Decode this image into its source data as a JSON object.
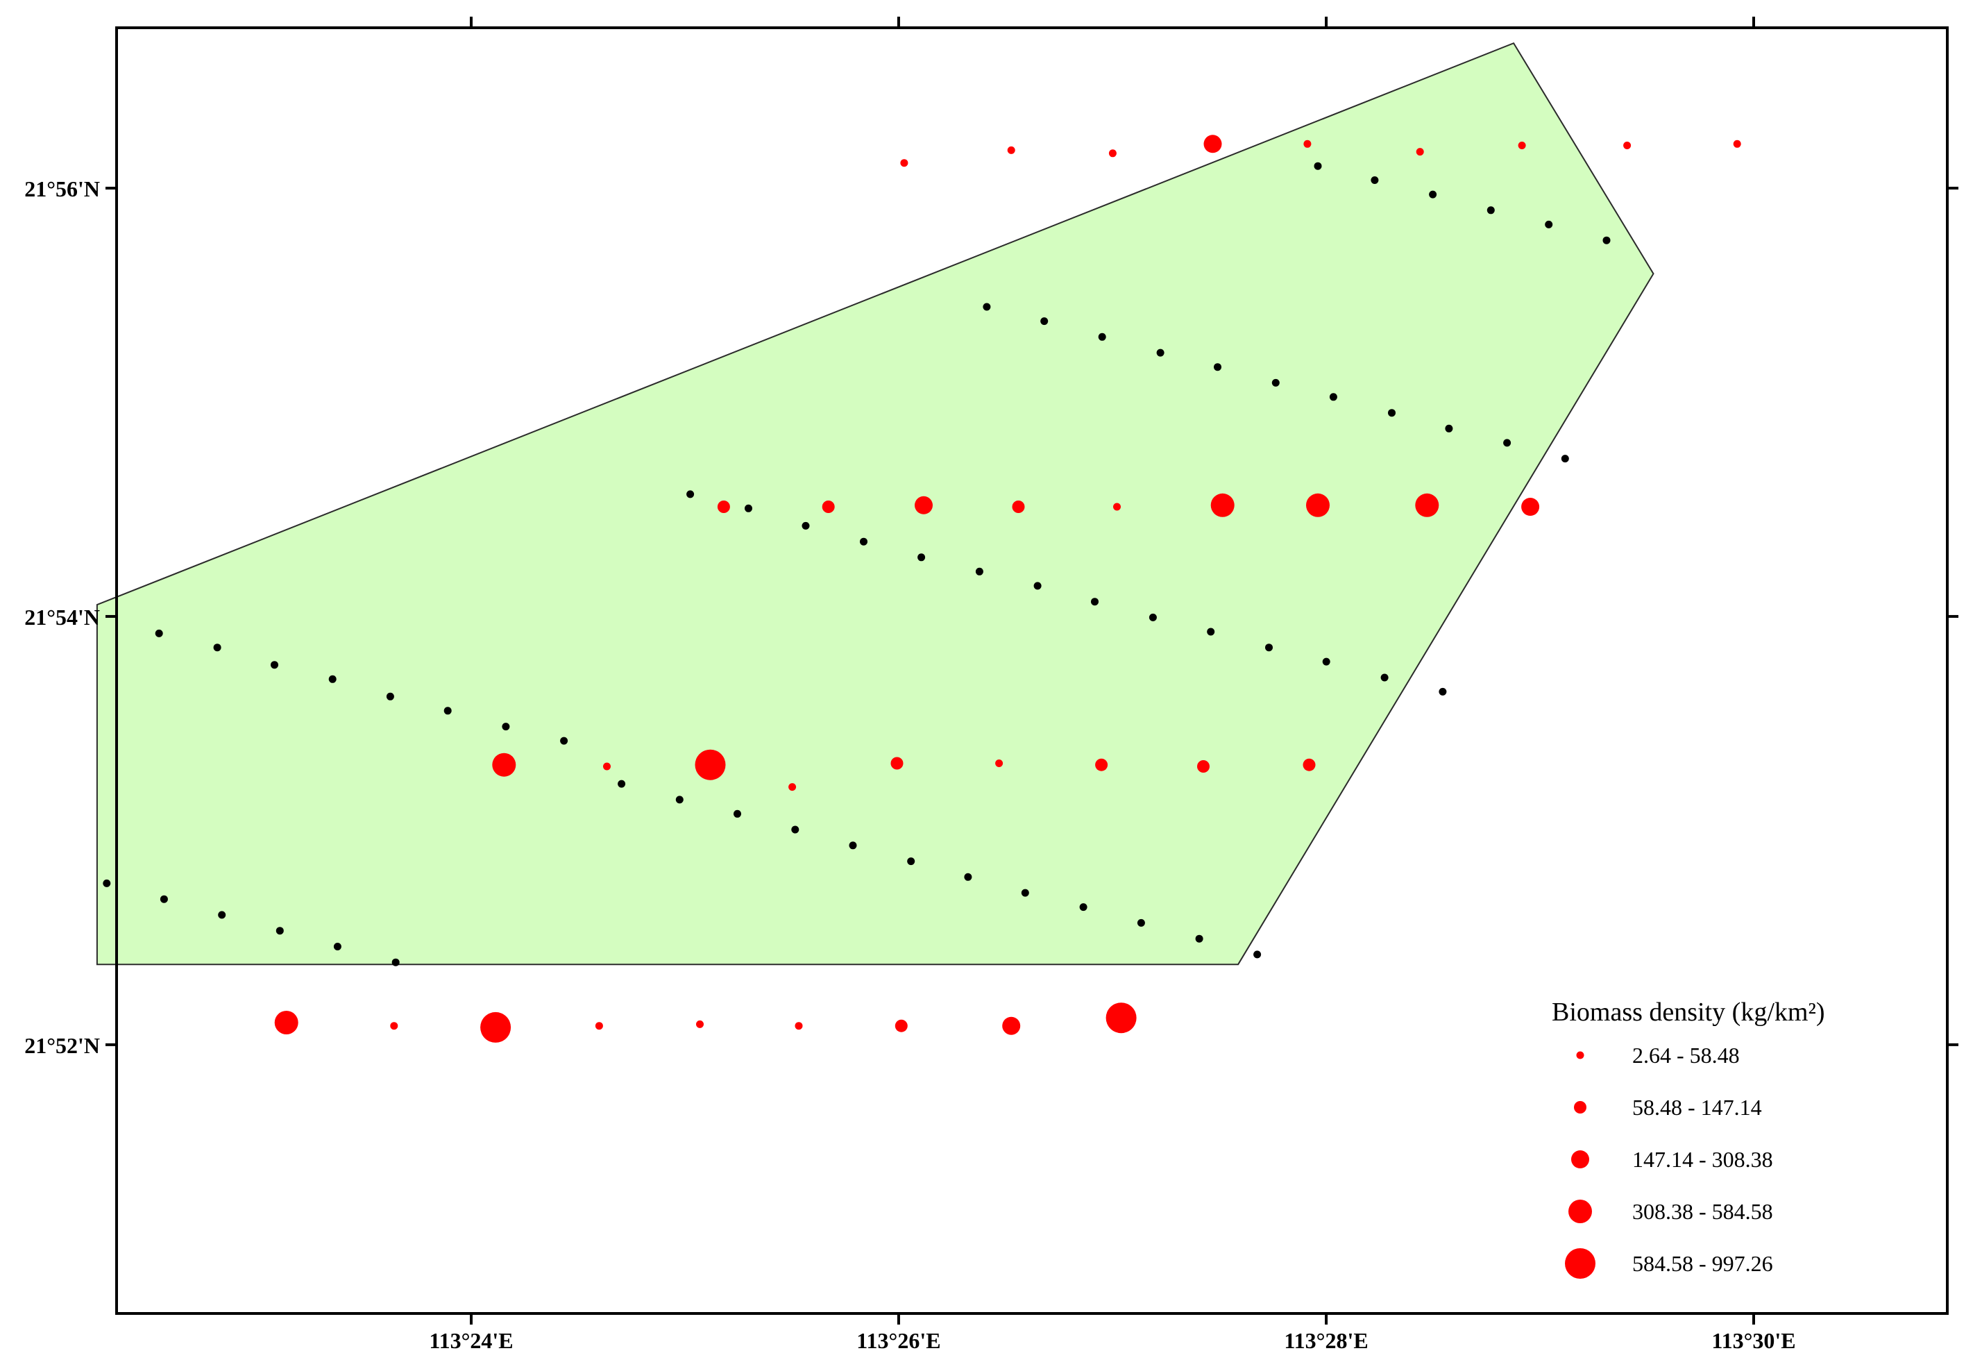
{
  "colors": {
    "study_area_fill": "#d4fdc0",
    "study_area_stroke": "#2b2b2b",
    "biomass_point": "#ff0000",
    "grid_point": "#000000",
    "frame": "#000000",
    "background": "#ffffff"
  },
  "map": {
    "lon_ticks": [
      {
        "lon": 113.4,
        "label": "113°24'E"
      },
      {
        "lon": 113.43333,
        "label": "113°26'E"
      },
      {
        "lon": 113.46667,
        "label": "113°28'E"
      },
      {
        "lon": 113.5,
        "label": "113°30'E"
      }
    ],
    "lat_ticks": [
      {
        "lat": 21.93333,
        "label": "21°56'N"
      },
      {
        "lat": 21.9,
        "label": "21°54'N"
      },
      {
        "lat": 21.86667,
        "label": "21°52'N"
      }
    ],
    "study_area_polygon": [
      [
        113.37083,
        21.90091
      ],
      [
        113.48128,
        21.94461
      ],
      [
        113.49218,
        21.92667
      ],
      [
        113.4598,
        21.87292
      ],
      [
        113.37083,
        21.87292
      ]
    ],
    "legend": {
      "title": "Biomass density (kg/km²)",
      "classes": [
        {
          "label": "2.64 - 58.48",
          "class": 1
        },
        {
          "label": "58.48 - 147.14",
          "class": 2
        },
        {
          "label": "147.14 - 308.38",
          "class": 3
        },
        {
          "label": "308.38 - 584.58",
          "class": 4
        },
        {
          "label": "584.58 - 997.26",
          "class": 5
        }
      ]
    },
    "biomass_points": [
      [
        113.43376,
        21.93529,
        1
      ],
      [
        113.44211,
        21.93628,
        1
      ],
      [
        113.45002,
        21.93604,
        1
      ],
      [
        113.45782,
        21.93677,
        3
      ],
      [
        113.4652,
        21.93677,
        1
      ],
      [
        113.47398,
        21.93616,
        1
      ],
      [
        113.48193,
        21.93665,
        1
      ],
      [
        113.49013,
        21.93665,
        1
      ],
      [
        113.49871,
        21.93677,
        1
      ],
      [
        113.41969,
        21.90853,
        2
      ],
      [
        113.42785,
        21.90853,
        2
      ],
      [
        113.43528,
        21.90865,
        3
      ],
      [
        113.44267,
        21.90853,
        2
      ],
      [
        113.45035,
        21.90853,
        1
      ],
      [
        113.45859,
        21.90865,
        4
      ],
      [
        113.46602,
        21.90865,
        4
      ],
      [
        113.47453,
        21.90865,
        4
      ],
      [
        113.48258,
        21.90853,
        3
      ],
      [
        113.40256,
        21.88845,
        4
      ],
      [
        113.41058,
        21.88833,
        1
      ],
      [
        113.41864,
        21.88845,
        5
      ],
      [
        113.42503,
        21.88673,
        1
      ],
      [
        113.4332,
        21.88857,
        2
      ],
      [
        113.44116,
        21.88857,
        1
      ],
      [
        113.44914,
        21.88845,
        2
      ],
      [
        113.45709,
        21.88833,
        2
      ],
      [
        113.46534,
        21.88845,
        2
      ],
      [
        113.38559,
        21.86839,
        4
      ],
      [
        113.39398,
        21.86814,
        1
      ],
      [
        113.4019,
        21.86802,
        5
      ],
      [
        113.40998,
        21.86814,
        1
      ],
      [
        113.41783,
        21.86826,
        1
      ],
      [
        113.42554,
        21.86814,
        1
      ],
      [
        113.43354,
        21.86814,
        2
      ],
      [
        113.44211,
        21.86814,
        3
      ],
      [
        113.45068,
        21.86876,
        5
      ]
    ],
    "grid_points": [
      [
        113.46602,
        21.93505
      ],
      [
        113.47045,
        21.93395
      ],
      [
        113.47498,
        21.93284
      ],
      [
        113.47951,
        21.93161
      ],
      [
        113.48402,
        21.9305
      ],
      [
        113.48853,
        21.92927
      ],
      [
        113.4402,
        21.92409
      ],
      [
        113.44468,
        21.92298
      ],
      [
        113.4492,
        21.92175
      ],
      [
        113.45374,
        21.92052
      ],
      [
        113.4582,
        21.91941
      ],
      [
        113.46273,
        21.91818
      ],
      [
        113.46723,
        21.91708
      ],
      [
        113.47178,
        21.91584
      ],
      [
        113.47624,
        21.91462
      ],
      [
        113.48077,
        21.91351
      ],
      [
        113.4853,
        21.91228
      ],
      [
        113.41708,
        21.90951
      ],
      [
        113.42162,
        21.90841
      ],
      [
        113.42608,
        21.90705
      ],
      [
        113.4306,
        21.90582
      ],
      [
        113.4351,
        21.9046
      ],
      [
        113.43963,
        21.90349
      ],
      [
        113.44416,
        21.90238
      ],
      [
        113.44862,
        21.90115
      ],
      [
        113.45316,
        21.89992
      ],
      [
        113.45767,
        21.89881
      ],
      [
        113.4622,
        21.89758
      ],
      [
        113.46668,
        21.89648
      ],
      [
        113.47122,
        21.89524
      ],
      [
        113.47575,
        21.89414
      ],
      [
        113.37566,
        21.89868
      ],
      [
        113.3802,
        21.89758
      ],
      [
        113.38466,
        21.89623
      ],
      [
        113.38919,
        21.89512
      ],
      [
        113.39369,
        21.89377
      ],
      [
        113.39817,
        21.89266
      ],
      [
        113.4027,
        21.89143
      ],
      [
        113.40723,
        21.89032
      ],
      [
        113.41172,
        21.88697
      ],
      [
        113.41625,
        21.88574
      ],
      [
        113.42075,
        21.88464
      ],
      [
        113.42526,
        21.88341
      ],
      [
        113.42976,
        21.88218
      ],
      [
        113.43429,
        21.88095
      ],
      [
        113.37158,
        21.87923
      ],
      [
        113.37605,
        21.878
      ],
      [
        113.38056,
        21.87677
      ],
      [
        113.38508,
        21.87554
      ],
      [
        113.38958,
        21.87431
      ],
      [
        113.39411,
        21.87308
      ],
      [
        113.43874,
        21.87972
      ],
      [
        113.4432,
        21.87849
      ],
      [
        113.44773,
        21.87738
      ],
      [
        113.45224,
        21.87615
      ],
      [
        113.45677,
        21.87492
      ],
      [
        113.46129,
        21.87369
      ]
    ]
  }
}
